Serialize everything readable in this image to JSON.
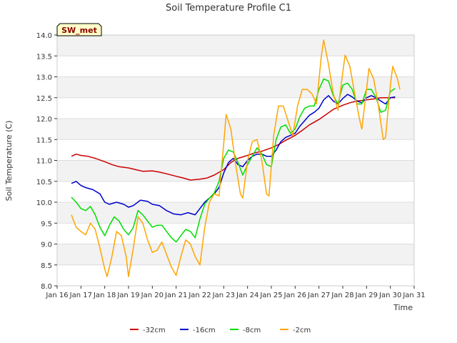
{
  "chart_data": {
    "type": "line",
    "title": "Soil Temperature Profile C1",
    "xlabel": "Time",
    "ylabel": "Soil Temperature (C)",
    "site_label": "SW_met",
    "xlim": [
      16,
      31
    ],
    "ylim": [
      8.0,
      14.0
    ],
    "x_ticks": [
      16,
      17,
      18,
      19,
      20,
      21,
      22,
      23,
      24,
      25,
      26,
      27,
      28,
      29,
      30,
      31
    ],
    "x_tick_labels": [
      "Jan 16",
      "Jan 17",
      "Jan 18",
      "Jan 19",
      "Jan 20",
      "Jan 21",
      "Jan 22",
      "Jan 23",
      "Jan 24",
      "Jan 25",
      "Jan 26",
      "Jan 27",
      "Jan 28",
      "Jan 29",
      "Jan 30",
      "Jan 31"
    ],
    "y_ticks": [
      8.0,
      8.5,
      9.0,
      9.5,
      10.0,
      10.5,
      11.0,
      11.5,
      12.0,
      12.5,
      13.0,
      13.5,
      14.0
    ],
    "y_tick_labels": [
      "8.0",
      "8.5",
      "9.0",
      "9.5",
      "10.0",
      "10.5",
      "11.0",
      "11.5",
      "12.0",
      "12.5",
      "13.0",
      "13.5",
      "14.0"
    ],
    "legend_position": "bottom-center",
    "series": [
      {
        "name": "-32cm",
        "color": "#cc0000",
        "points": [
          [
            16.6,
            11.1
          ],
          [
            16.8,
            11.15
          ],
          [
            17.0,
            11.12
          ],
          [
            17.3,
            11.1
          ],
          [
            17.6,
            11.05
          ],
          [
            18.0,
            10.97
          ],
          [
            18.3,
            10.9
          ],
          [
            18.6,
            10.85
          ],
          [
            19.0,
            10.82
          ],
          [
            19.3,
            10.78
          ],
          [
            19.6,
            10.74
          ],
          [
            20.0,
            10.75
          ],
          [
            20.3,
            10.72
          ],
          [
            20.6,
            10.68
          ],
          [
            21.0,
            10.62
          ],
          [
            21.3,
            10.58
          ],
          [
            21.6,
            10.53
          ],
          [
            22.0,
            10.55
          ],
          [
            22.3,
            10.58
          ],
          [
            22.6,
            10.65
          ],
          [
            23.0,
            10.78
          ],
          [
            23.3,
            10.95
          ],
          [
            23.6,
            11.05
          ],
          [
            24.0,
            11.12
          ],
          [
            24.3,
            11.18
          ],
          [
            24.6,
            11.22
          ],
          [
            25.0,
            11.3
          ],
          [
            25.3,
            11.38
          ],
          [
            25.6,
            11.48
          ],
          [
            26.0,
            11.6
          ],
          [
            26.3,
            11.72
          ],
          [
            26.6,
            11.85
          ],
          [
            27.0,
            11.98
          ],
          [
            27.3,
            12.1
          ],
          [
            27.6,
            12.22
          ],
          [
            28.0,
            12.32
          ],
          [
            28.3,
            12.38
          ],
          [
            28.6,
            12.42
          ],
          [
            29.0,
            12.45
          ],
          [
            29.3,
            12.47
          ],
          [
            29.6,
            12.5
          ],
          [
            30.0,
            12.5
          ],
          [
            30.2,
            12.5
          ]
        ]
      },
      {
        "name": "-16cm",
        "color": "#0000cc",
        "points": [
          [
            16.6,
            10.45
          ],
          [
            16.8,
            10.5
          ],
          [
            17.0,
            10.4
          ],
          [
            17.2,
            10.35
          ],
          [
            17.5,
            10.3
          ],
          [
            17.8,
            10.2
          ],
          [
            18.0,
            10.0
          ],
          [
            18.2,
            9.95
          ],
          [
            18.5,
            10.0
          ],
          [
            18.8,
            9.95
          ],
          [
            19.0,
            9.88
          ],
          [
            19.2,
            9.92
          ],
          [
            19.5,
            10.05
          ],
          [
            19.8,
            10.02
          ],
          [
            20.0,
            9.95
          ],
          [
            20.3,
            9.92
          ],
          [
            20.6,
            9.8
          ],
          [
            20.9,
            9.72
          ],
          [
            21.2,
            9.7
          ],
          [
            21.5,
            9.75
          ],
          [
            21.8,
            9.7
          ],
          [
            22.0,
            9.85
          ],
          [
            22.2,
            10.0
          ],
          [
            22.4,
            10.1
          ],
          [
            22.6,
            10.2
          ],
          [
            22.8,
            10.35
          ],
          [
            23.0,
            10.7
          ],
          [
            23.2,
            10.95
          ],
          [
            23.4,
            11.05
          ],
          [
            23.6,
            10.9
          ],
          [
            23.8,
            10.85
          ],
          [
            24.0,
            11.0
          ],
          [
            24.2,
            11.1
          ],
          [
            24.4,
            11.15
          ],
          [
            24.6,
            11.15
          ],
          [
            24.8,
            11.1
          ],
          [
            25.0,
            11.1
          ],
          [
            25.2,
            11.25
          ],
          [
            25.4,
            11.45
          ],
          [
            25.6,
            11.55
          ],
          [
            25.8,
            11.6
          ],
          [
            26.0,
            11.65
          ],
          [
            26.2,
            11.82
          ],
          [
            26.4,
            11.95
          ],
          [
            26.6,
            12.08
          ],
          [
            26.8,
            12.15
          ],
          [
            27.0,
            12.25
          ],
          [
            27.2,
            12.45
          ],
          [
            27.4,
            12.55
          ],
          [
            27.6,
            12.42
          ],
          [
            27.8,
            12.35
          ],
          [
            28.0,
            12.48
          ],
          [
            28.2,
            12.58
          ],
          [
            28.4,
            12.52
          ],
          [
            28.6,
            12.42
          ],
          [
            28.8,
            12.38
          ],
          [
            29.0,
            12.5
          ],
          [
            29.2,
            12.55
          ],
          [
            29.4,
            12.5
          ],
          [
            29.6,
            12.42
          ],
          [
            29.8,
            12.35
          ],
          [
            30.0,
            12.5
          ],
          [
            30.2,
            12.52
          ]
        ]
      },
      {
        "name": "-8cm",
        "color": "#00dd00",
        "points": [
          [
            16.6,
            10.12
          ],
          [
            16.8,
            10.0
          ],
          [
            17.0,
            9.85
          ],
          [
            17.2,
            9.8
          ],
          [
            17.4,
            9.9
          ],
          [
            17.6,
            9.7
          ],
          [
            17.8,
            9.4
          ],
          [
            18.0,
            9.2
          ],
          [
            18.2,
            9.45
          ],
          [
            18.4,
            9.65
          ],
          [
            18.6,
            9.55
          ],
          [
            18.8,
            9.35
          ],
          [
            19.0,
            9.22
          ],
          [
            19.2,
            9.4
          ],
          [
            19.4,
            9.8
          ],
          [
            19.6,
            9.7
          ],
          [
            19.8,
            9.55
          ],
          [
            20.0,
            9.4
          ],
          [
            20.2,
            9.45
          ],
          [
            20.4,
            9.45
          ],
          [
            20.6,
            9.3
          ],
          [
            20.8,
            9.15
          ],
          [
            21.0,
            9.05
          ],
          [
            21.2,
            9.2
          ],
          [
            21.4,
            9.35
          ],
          [
            21.6,
            9.3
          ],
          [
            21.8,
            9.15
          ],
          [
            22.0,
            9.6
          ],
          [
            22.2,
            9.95
          ],
          [
            22.4,
            10.1
          ],
          [
            22.6,
            10.22
          ],
          [
            22.8,
            10.5
          ],
          [
            23.0,
            11.05
          ],
          [
            23.2,
            11.25
          ],
          [
            23.4,
            11.2
          ],
          [
            23.6,
            10.95
          ],
          [
            23.8,
            10.65
          ],
          [
            24.0,
            10.9
          ],
          [
            24.2,
            11.1
          ],
          [
            24.4,
            11.3
          ],
          [
            24.6,
            11.15
          ],
          [
            24.8,
            10.9
          ],
          [
            25.0,
            10.85
          ],
          [
            25.2,
            11.5
          ],
          [
            25.4,
            11.8
          ],
          [
            25.6,
            11.85
          ],
          [
            25.8,
            11.65
          ],
          [
            26.0,
            11.75
          ],
          [
            26.2,
            12.05
          ],
          [
            26.4,
            12.25
          ],
          [
            26.6,
            12.3
          ],
          [
            26.8,
            12.3
          ],
          [
            27.0,
            12.7
          ],
          [
            27.2,
            12.95
          ],
          [
            27.4,
            12.9
          ],
          [
            27.6,
            12.55
          ],
          [
            27.8,
            12.35
          ],
          [
            28.0,
            12.8
          ],
          [
            28.2,
            12.85
          ],
          [
            28.4,
            12.7
          ],
          [
            28.6,
            12.35
          ],
          [
            28.8,
            12.35
          ],
          [
            29.0,
            12.7
          ],
          [
            29.2,
            12.7
          ],
          [
            29.4,
            12.5
          ],
          [
            29.6,
            12.15
          ],
          [
            29.8,
            12.2
          ],
          [
            30.0,
            12.65
          ],
          [
            30.2,
            12.72
          ]
        ]
      },
      {
        "name": "-2cm",
        "color": "#ffa500",
        "points": [
          [
            16.6,
            9.7
          ],
          [
            16.8,
            9.4
          ],
          [
            17.0,
            9.3
          ],
          [
            17.2,
            9.22
          ],
          [
            17.4,
            9.5
          ],
          [
            17.6,
            9.35
          ],
          [
            17.8,
            8.9
          ],
          [
            18.0,
            8.4
          ],
          [
            18.1,
            8.22
          ],
          [
            18.3,
            8.7
          ],
          [
            18.5,
            9.3
          ],
          [
            18.7,
            9.2
          ],
          [
            18.9,
            8.7
          ],
          [
            19.0,
            8.22
          ],
          [
            19.2,
            8.9
          ],
          [
            19.4,
            9.65
          ],
          [
            19.6,
            9.5
          ],
          [
            19.8,
            9.1
          ],
          [
            20.0,
            8.8
          ],
          [
            20.2,
            8.85
          ],
          [
            20.4,
            9.05
          ],
          [
            20.6,
            8.75
          ],
          [
            20.8,
            8.45
          ],
          [
            21.0,
            8.25
          ],
          [
            21.2,
            8.7
          ],
          [
            21.4,
            9.1
          ],
          [
            21.6,
            9.0
          ],
          [
            21.8,
            8.7
          ],
          [
            22.0,
            8.5
          ],
          [
            22.2,
            9.4
          ],
          [
            22.4,
            10.0
          ],
          [
            22.6,
            10.2
          ],
          [
            22.8,
            10.15
          ],
          [
            23.0,
            11.4
          ],
          [
            23.1,
            12.1
          ],
          [
            23.3,
            11.75
          ],
          [
            23.5,
            10.9
          ],
          [
            23.7,
            10.2
          ],
          [
            23.8,
            10.1
          ],
          [
            24.0,
            11.0
          ],
          [
            24.2,
            11.45
          ],
          [
            24.4,
            11.5
          ],
          [
            24.6,
            11.0
          ],
          [
            24.8,
            10.2
          ],
          [
            24.9,
            10.15
          ],
          [
            25.1,
            11.6
          ],
          [
            25.3,
            12.3
          ],
          [
            25.5,
            12.3
          ],
          [
            25.7,
            11.95
          ],
          [
            25.9,
            11.6
          ],
          [
            26.1,
            12.3
          ],
          [
            26.3,
            12.7
          ],
          [
            26.5,
            12.7
          ],
          [
            26.7,
            12.6
          ],
          [
            26.9,
            12.35
          ],
          [
            27.1,
            13.5
          ],
          [
            27.2,
            13.88
          ],
          [
            27.4,
            13.3
          ],
          [
            27.6,
            12.6
          ],
          [
            27.8,
            12.2
          ],
          [
            28.0,
            13.1
          ],
          [
            28.1,
            13.52
          ],
          [
            28.3,
            13.25
          ],
          [
            28.5,
            12.6
          ],
          [
            28.7,
            12.0
          ],
          [
            28.8,
            11.75
          ],
          [
            29.0,
            12.7
          ],
          [
            29.1,
            13.2
          ],
          [
            29.3,
            12.95
          ],
          [
            29.5,
            12.3
          ],
          [
            29.7,
            11.5
          ],
          [
            29.8,
            11.55
          ],
          [
            30.0,
            12.8
          ],
          [
            30.1,
            13.25
          ],
          [
            30.3,
            12.95
          ],
          [
            30.4,
            12.7
          ]
        ]
      }
    ]
  }
}
